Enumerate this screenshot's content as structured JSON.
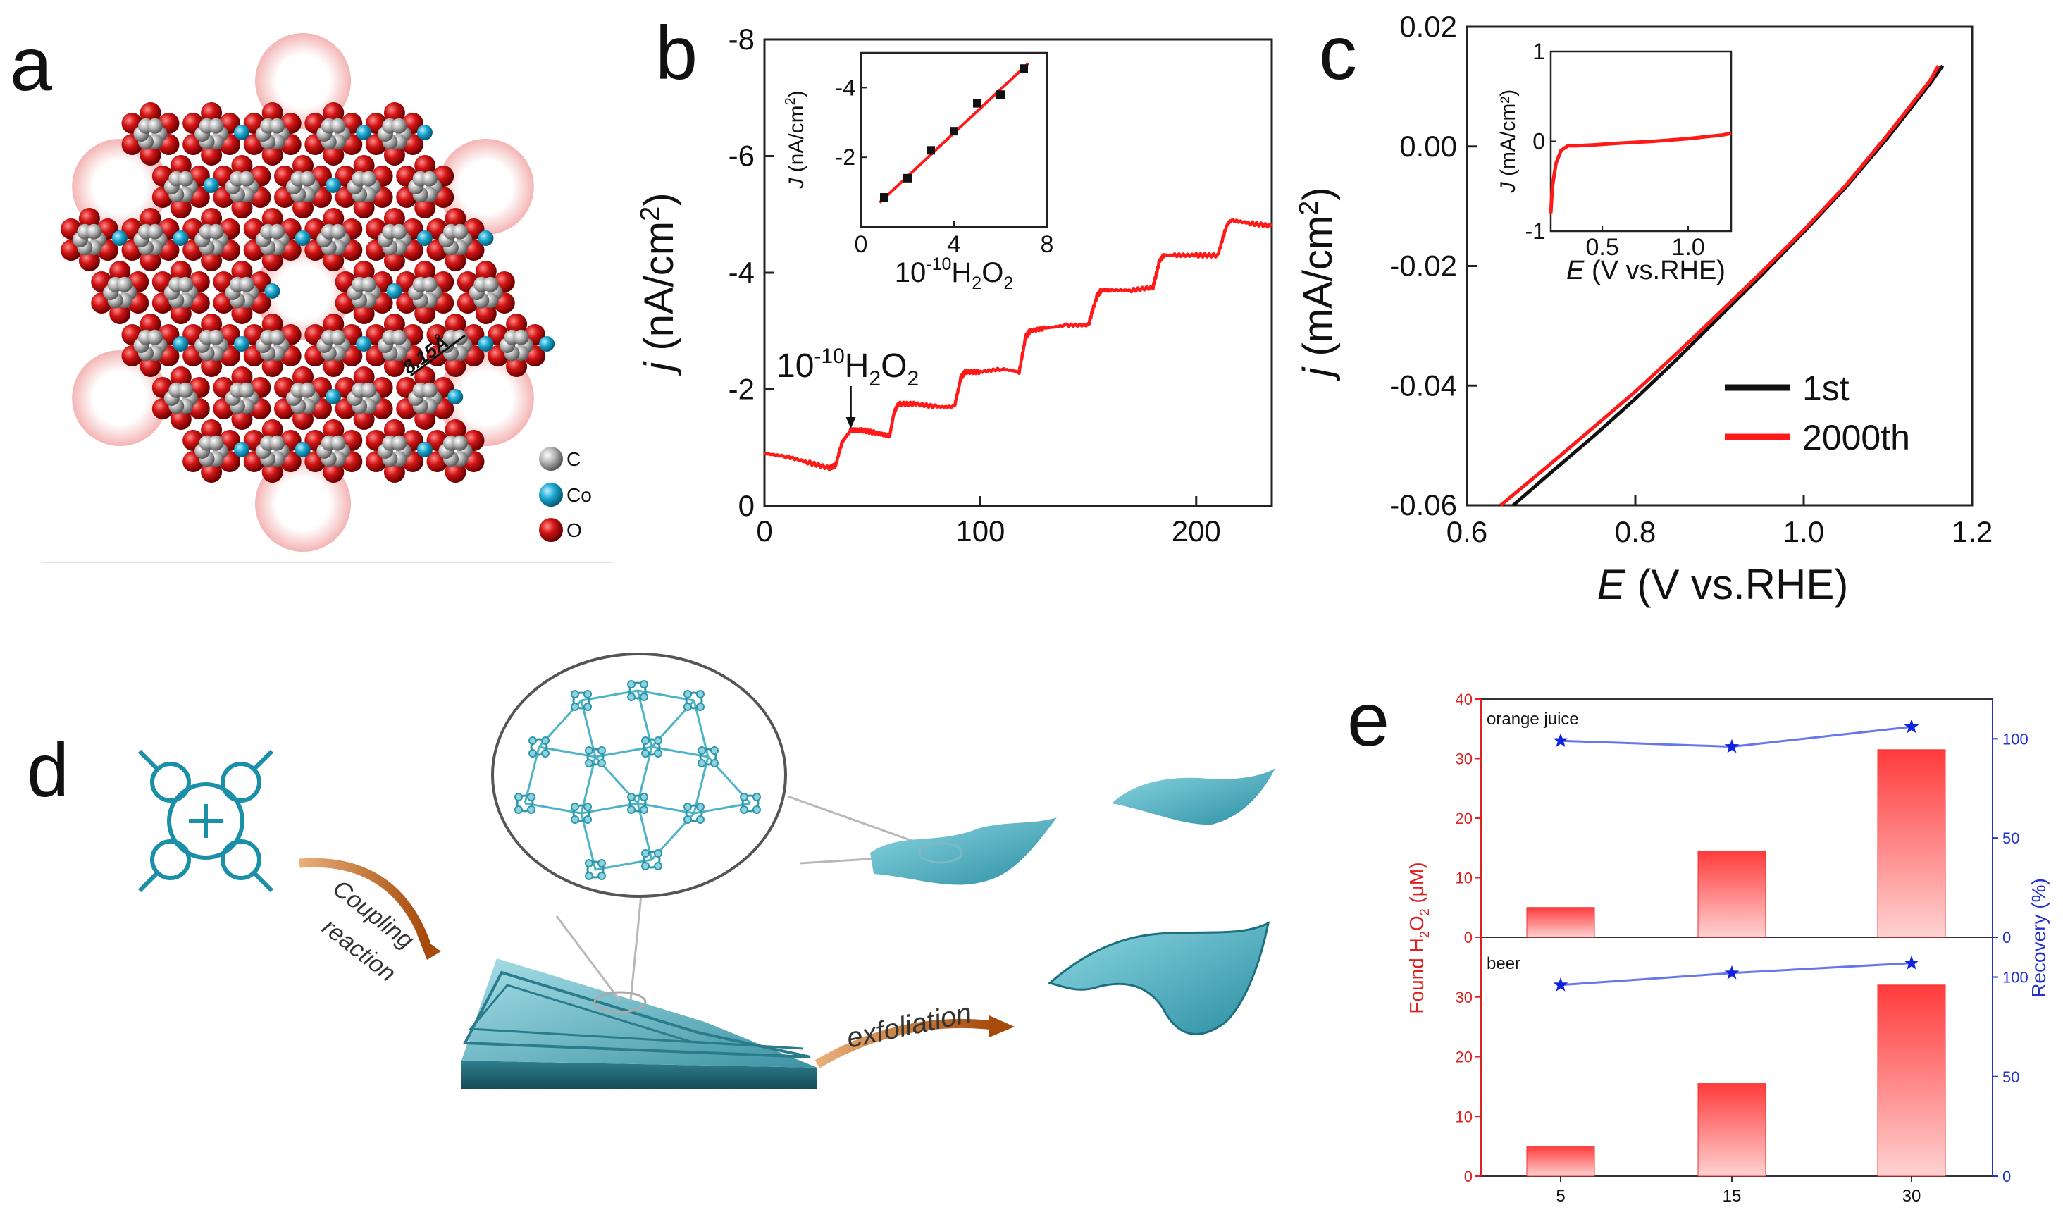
{
  "panels": {
    "a": "a",
    "b": "b",
    "c": "c",
    "d": "d",
    "e": "e"
  },
  "panel_a": {
    "distance_label": "8.15Å",
    "legend": [
      {
        "label": "C",
        "color": "#9a9a9a"
      },
      {
        "label": "Co",
        "color": "#1aa3c8"
      },
      {
        "label": "O",
        "color": "#cc1111"
      }
    ]
  },
  "panel_d": {
    "arrow1_label_line1": "Coupling",
    "arrow1_label_line2": "reaction",
    "arrow2_label": "exfoliation"
  },
  "chart_data": [
    {
      "id": "b",
      "type": "line",
      "xlabel": "",
      "ylabel_italic": "j",
      "ylabel_rest": " (nA/cm",
      "ylabel_sup": "2",
      "ylabel_close": ")",
      "xlim": [
        0,
        235
      ],
      "ylim": [
        0,
        -8
      ],
      "xticks": [
        0,
        100,
        200
      ],
      "xtick_labels": [
        "0",
        "100",
        "200"
      ],
      "yticks": [
        0,
        -2,
        -4,
        -6,
        -8
      ],
      "ytick_labels": [
        "0",
        "-2",
        "-4",
        "-6",
        "-8"
      ],
      "annotation_base": "10",
      "annotation_exp": "-10",
      "annotation_h": "H",
      "annotation_s2": "2",
      "annotation_o": "O",
      "annotation_s2b": "2",
      "annotation_x": 40,
      "series": [
        {
          "name": "current",
          "color": "#ff1a1a",
          "x": [
            0,
            10,
            20,
            30,
            33,
            36,
            40,
            45,
            52,
            58,
            60,
            62,
            70,
            80,
            88,
            91,
            93,
            100,
            110,
            118,
            121,
            123,
            130,
            140,
            150,
            154,
            156,
            160,
            170,
            180,
            183,
            185,
            190,
            200,
            210,
            214,
            216,
            225,
            235
          ],
          "y": [
            -0.9,
            -0.85,
            -0.75,
            -0.65,
            -0.7,
            -1.1,
            -1.3,
            -1.3,
            -1.25,
            -1.2,
            -1.6,
            -1.75,
            -1.75,
            -1.7,
            -1.7,
            -2.2,
            -2.3,
            -2.3,
            -2.35,
            -2.3,
            -2.9,
            -3.0,
            -3.05,
            -3.1,
            -3.1,
            -3.6,
            -3.7,
            -3.7,
            -3.7,
            -3.75,
            -4.2,
            -4.3,
            -4.3,
            -4.3,
            -4.3,
            -4.8,
            -4.9,
            -4.85,
            -4.8
          ]
        }
      ],
      "inset": {
        "type": "scatter",
        "xlabel_base": "10",
        "xlabel_exp": "-10",
        "xlabel_h": "H",
        "xlabel_s1": "2",
        "xlabel_o": "O",
        "xlabel_s2": "2",
        "ylabel_italic": "J",
        "ylabel_rest": " (nA/cm",
        "ylabel_sup": "2",
        "ylabel_close": ")",
        "xlim": [
          0,
          8
        ],
        "ylim": [
          0,
          -5
        ],
        "xticks": [
          0,
          4,
          8
        ],
        "xtick_labels": [
          "0",
          "4",
          "8"
        ],
        "yticks": [
          -2,
          -4
        ],
        "ytick_labels": [
          "-2",
          "-4"
        ],
        "points_x": [
          1,
          2,
          3,
          4,
          5,
          6,
          7
        ],
        "points_y": [
          -0.85,
          -1.4,
          -2.2,
          -2.75,
          -3.55,
          -3.8,
          -4.55
        ],
        "fit": [
          [
            0.8,
            -0.7
          ],
          [
            7.2,
            -4.7
          ]
        ]
      }
    },
    {
      "id": "c",
      "type": "line",
      "xlabel_italic": "E",
      "xlabel_rest": " (V vs.RHE)",
      "ylabel_italic": "j",
      "ylabel_rest": " (mA/cm",
      "ylabel_sup": "2",
      "ylabel_close": ")",
      "xlim": [
        0.6,
        1.2
      ],
      "ylim": [
        -0.06,
        0.02
      ],
      "xticks": [
        0.6,
        0.8,
        1.0,
        1.2
      ],
      "xtick_labels": [
        "0.6",
        "0.8",
        "1.0",
        "1.2"
      ],
      "yticks": [
        0.02,
        0.0,
        -0.02,
        -0.04,
        -0.06
      ],
      "ytick_labels": [
        "0.02",
        "0.00",
        "-0.02",
        "-0.04",
        "-0.06"
      ],
      "legend": [
        "1st",
        "2000th"
      ],
      "series": [
        {
          "name": "1st",
          "color": "#111111",
          "x": [
            0.655,
            0.7,
            0.75,
            0.8,
            0.85,
            0.9,
            0.95,
            1.0,
            1.05,
            1.1,
            1.15,
            1.165
          ],
          "y": [
            -0.06,
            -0.0545,
            -0.0485,
            -0.0422,
            -0.0355,
            -0.0285,
            -0.0215,
            -0.0143,
            -0.0068,
            0.0015,
            0.0105,
            0.0135
          ]
        },
        {
          "name": "2000th",
          "color": "#ff1a1a",
          "x": [
            0.64,
            0.7,
            0.75,
            0.8,
            0.85,
            0.9,
            0.95,
            1.0,
            1.05,
            1.1,
            1.15,
            1.16
          ],
          "y": [
            -0.06,
            -0.053,
            -0.047,
            -0.041,
            -0.0345,
            -0.0278,
            -0.021,
            -0.014,
            -0.0065,
            0.002,
            0.011,
            0.0135
          ]
        }
      ],
      "inset": {
        "type": "line",
        "xlabel_italic": "E",
        "xlabel_rest": " (V vs.RHE)",
        "ylabel_italic": "J",
        "ylabel_rest": " (mA/cm²)",
        "xlim": [
          0.2,
          1.25
        ],
        "ylim": [
          -1,
          1
        ],
        "xticks": [
          0.5,
          1.0
        ],
        "xtick_labels": [
          "0.5",
          "1.0"
        ],
        "yticks": [
          -1,
          0,
          1
        ],
        "ytick_labels": [
          "-1",
          "0",
          "1"
        ],
        "series": [
          {
            "name": "cv",
            "color": "#ff1a1a",
            "x": [
              0.2,
              0.21,
              0.23,
              0.26,
              0.3,
              0.35,
              0.45,
              0.6,
              0.8,
              1.0,
              1.2,
              1.25
            ],
            "y": [
              -0.8,
              -0.5,
              -0.25,
              -0.1,
              -0.05,
              -0.05,
              -0.04,
              -0.02,
              0.0,
              0.03,
              0.07,
              0.09
            ]
          }
        ]
      }
    },
    {
      "id": "e",
      "type": "bar",
      "categories": [
        "5",
        "15",
        "30"
      ],
      "ylabel_left_pre": "Found H",
      "ylabel_left_s1": "2",
      "ylabel_left_o": "O",
      "ylabel_left_s2": "2",
      "ylabel_left_post": " (μM)",
      "ylabel_right": "Recovery (%)",
      "left_color": "#dd2222",
      "right_color": "#2233cc",
      "subplots": [
        {
          "name": "orange juice",
          "bar_values": [
            5,
            14.5,
            31.5
          ],
          "recovery": [
            99,
            96,
            106
          ],
          "ylim_left": [
            0,
            40
          ],
          "ylim_right": [
            0,
            120
          ],
          "yticks_left": [
            0,
            10,
            20,
            30,
            40
          ],
          "ytick_labels_left": [
            "0",
            "10",
            "20",
            "30",
            "40"
          ],
          "yticks_right": [
            0,
            50,
            100
          ],
          "ytick_labels_right": [
            "0",
            "50",
            "100"
          ]
        },
        {
          "name": "beer",
          "bar_values": [
            5,
            15.5,
            32
          ],
          "recovery": [
            96,
            102,
            107
          ],
          "ylim_left": [
            0,
            40
          ],
          "ylim_right": [
            0,
            120
          ],
          "yticks_left": [
            0,
            10,
            20,
            30
          ],
          "ytick_labels_left": [
            "0",
            "10",
            "20",
            "30"
          ],
          "yticks_right": [
            0,
            50,
            100
          ],
          "ytick_labels_right": [
            "0",
            "50",
            "100"
          ]
        }
      ]
    }
  ]
}
